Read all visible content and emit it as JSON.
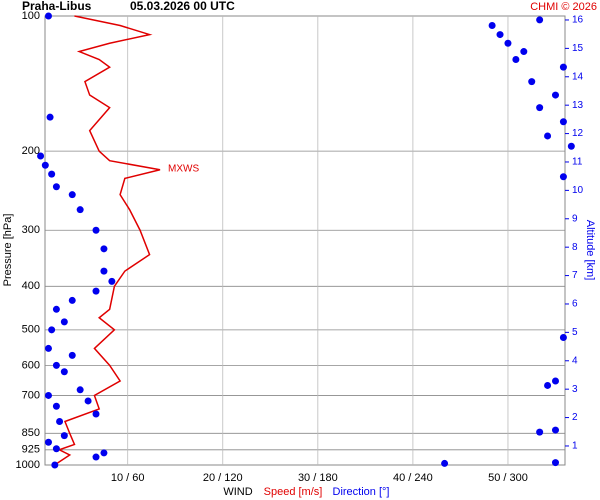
{
  "chart_data": {
    "type": "profile",
    "title": "Praha-Libus",
    "subtitle": "05.03.2026 00 UTC",
    "credit": "CHMI © 2026",
    "y_label": "Pressure [hPa]",
    "y2_label": "Altitude [km]",
    "x_label": "WIND",
    "annotation": "MXWS",
    "ylim": [
      100,
      1000
    ],
    "log_y": true,
    "yticks": [
      100,
      200,
      300,
      400,
      500,
      600,
      700,
      850,
      925,
      1000
    ],
    "y2lim": [
      0.33,
      16.14
    ],
    "y2ticks": [
      1,
      2,
      3,
      4,
      5,
      6,
      7,
      8,
      9,
      10,
      11,
      12,
      13,
      14,
      15,
      16
    ],
    "xlim": [
      1.3,
      56
    ],
    "x2lim": [
      7.8,
      336
    ],
    "xticks": [
      {
        "value": 10,
        "label": "10 / 60"
      },
      {
        "value": 20,
        "label": "20 / 120"
      },
      {
        "value": 30,
        "label": "30 / 180"
      },
      {
        "value": 40,
        "label": "40 / 240"
      },
      {
        "value": 50,
        "label": "50 / 300"
      }
    ],
    "grid": true,
    "series": [
      {
        "name": "Speed [m/s]",
        "color": "#e00000",
        "style": "line",
        "pressure": [
          1000,
          950,
          925,
          900,
          850,
          800,
          750,
          700,
          650,
          600,
          550,
          500,
          470,
          450,
          400,
          370,
          340,
          300,
          270,
          250,
          230,
          220,
          210,
          200,
          180,
          160,
          150,
          140,
          130,
          125,
          120,
          115,
          110,
          105,
          100
        ],
        "values": [
          2.3,
          3.9,
          2.8,
          4.4,
          3.9,
          3.4,
          7,
          6.5,
          9.2,
          8.1,
          6.5,
          8.6,
          7,
          8.1,
          8.6,
          9.7,
          12.3,
          11.3,
          10.2,
          9.2,
          9.7,
          13.4,
          8.1,
          7,
          6,
          8.1,
          6,
          5.5,
          8.1,
          7,
          4.9,
          8.1,
          12.3,
          9.2,
          4.4
        ]
      },
      {
        "name": "Direction [°]",
        "color": "#0000ee",
        "style": "dots",
        "axis": "x2",
        "pressure": [
          1000,
          992,
          988,
          960,
          940,
          920,
          890,
          860,
          845,
          836,
          800,
          770,
          740,
          720,
          700,
          680,
          665,
          650,
          620,
          600,
          570,
          550,
          520,
          500,
          480,
          450,
          430,
          410,
          390,
          370,
          330,
          300,
          270,
          250,
          240,
          228,
          225,
          215,
          205,
          195,
          185,
          172,
          168,
          160,
          150,
          140,
          130,
          125,
          120,
          115,
          110,
          105,
          102,
          100
        ],
        "values": [
          14,
          260,
          330,
          40,
          45,
          15,
          10,
          20,
          320,
          330,
          17,
          40,
          15,
          35,
          10,
          30,
          325,
          330,
          20,
          15,
          25,
          10,
          335,
          12,
          20,
          15,
          25,
          40,
          50,
          45,
          45,
          40,
          30,
          25,
          15,
          335,
          12,
          8,
          5,
          340,
          325,
          335,
          11,
          320,
          330,
          315,
          335,
          305,
          310,
          300,
          295,
          290,
          320,
          10
        ]
      }
    ]
  }
}
